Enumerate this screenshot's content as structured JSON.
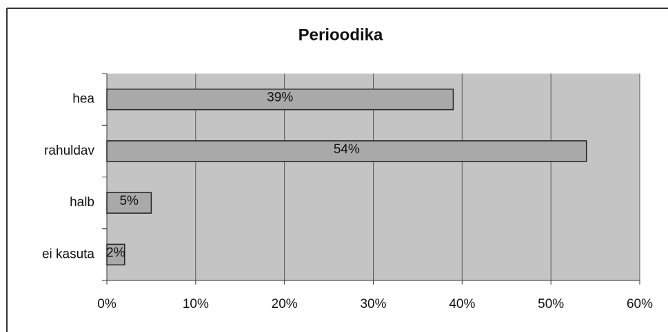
{
  "chart_data": {
    "type": "bar",
    "orientation": "horizontal",
    "title": "Perioodika",
    "categories": [
      "hea",
      "rahuldav",
      "halb",
      "ei kasuta"
    ],
    "values": [
      39,
      54,
      5,
      2
    ],
    "value_labels": [
      "39%",
      "54%",
      "5%",
      "2%"
    ],
    "color": "#a9a9a9",
    "xlim": [
      0,
      60
    ],
    "xticks": [
      {
        "value": 0,
        "label": "0%"
      },
      {
        "value": 10,
        "label": "10%"
      },
      {
        "value": 20,
        "label": "20%"
      },
      {
        "value": 30,
        "label": "30%"
      },
      {
        "value": 40,
        "label": "40%"
      },
      {
        "value": 50,
        "label": "50%"
      },
      {
        "value": 60,
        "label": "60%"
      }
    ],
    "grid": true
  }
}
